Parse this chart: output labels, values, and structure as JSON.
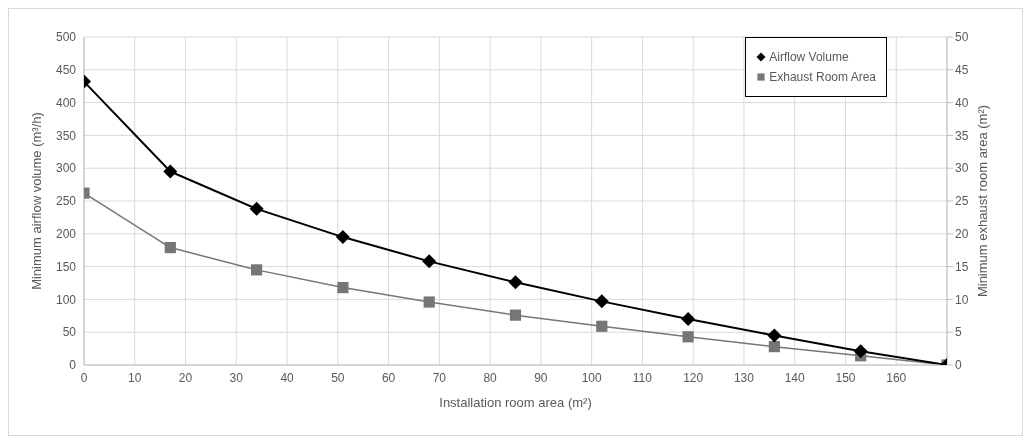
{
  "chart_data": {
    "type": "line",
    "xlabel": "Installation room area (m²)",
    "ylabel": "Minimum airflow volume (m³/h)",
    "y2label": "Minimum exhaust room area (m²)",
    "x": [
      0,
      17,
      34,
      51,
      68,
      85,
      102,
      119,
      136,
      153,
      170
    ],
    "series": [
      {
        "name": "Airflow Volume",
        "color": "#000000",
        "marker": "diamond",
        "values": [
          432,
          295,
          238,
          195,
          158,
          126,
          97,
          70,
          45,
          21,
          0
        ]
      },
      {
        "name": "Exhaust Room Area",
        "color": "#767676",
        "marker": "square",
        "axis": "y2",
        "values": [
          26.2,
          17.9,
          14.5,
          11.8,
          9.6,
          7.6,
          5.9,
          4.3,
          2.8,
          1.4,
          0
        ]
      }
    ],
    "xlim": [
      0,
      170
    ],
    "xticks": [
      0,
      10,
      20,
      30,
      40,
      50,
      60,
      70,
      80,
      90,
      100,
      110,
      120,
      130,
      140,
      150,
      160
    ],
    "ylim": [
      0,
      500
    ],
    "yticks": [
      0,
      50,
      100,
      150,
      200,
      250,
      300,
      350,
      400,
      450,
      500
    ],
    "y2lim": [
      0,
      50
    ],
    "y2ticks": [
      0,
      5,
      10,
      15,
      20,
      25,
      30,
      35,
      40,
      45,
      50
    ],
    "grid": true,
    "legend": "top right",
    "line_style": "solid"
  }
}
